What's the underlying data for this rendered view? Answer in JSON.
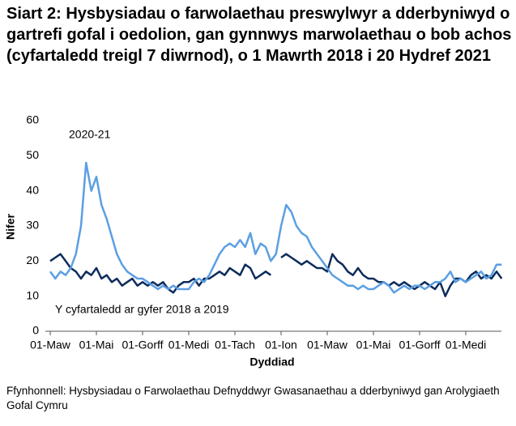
{
  "chart_data": {
    "type": "line",
    "title": "Siart 2: Hysbysiadau o farwolaethau preswylwyr a dderbyniwyd o gartrefi gofal i oedolion, gan gynnwys marwolaethau o bob achos (cyfartaledd treigl 7 diwrnod), o 1 Mawrth 2018 i 20 Hydref 2021",
    "x_label": "Dyddiad",
    "y_label": "Nifer",
    "source": "Ffynhonnell: Hysbysiadau o Farwolaethau Defnyddwyr Gwasanaethau a dderbyniwyd gan Arolygiaeth Gofal Cymru",
    "annotations": [
      "2020-21",
      "Y cyfartaledd ar gyfer 2018 a 2019"
    ],
    "categories": [
      "01-Maw",
      null,
      null,
      null,
      null,
      null,
      null,
      null,
      null,
      "01-Mai",
      null,
      null,
      null,
      null,
      null,
      null,
      null,
      null,
      "01-Gorff",
      null,
      null,
      null,
      null,
      null,
      null,
      null,
      null,
      "01-Medi",
      null,
      null,
      null,
      null,
      null,
      null,
      null,
      null,
      "01-Tach",
      null,
      null,
      null,
      null,
      null,
      null,
      null,
      null,
      "01-Ion",
      null,
      null,
      null,
      null,
      null,
      null,
      null,
      null,
      "01-Maw",
      null,
      null,
      null,
      null,
      null,
      null,
      null,
      null,
      "01-Mai",
      null,
      null,
      null,
      null,
      null,
      null,
      null,
      null,
      "01-Gorff",
      null,
      null,
      null,
      null,
      null,
      null,
      null,
      null,
      "01-Medi",
      null,
      null,
      null,
      null,
      null,
      null,
      null
    ],
    "series": [
      {
        "name": "2020-21",
        "color": "#5b9fe3",
        "values": [
          17,
          15,
          17,
          16,
          18,
          22,
          30,
          48,
          40,
          44,
          36,
          32,
          27,
          22,
          19,
          17,
          16,
          15,
          15,
          14,
          13,
          12,
          13,
          12,
          13,
          12,
          12,
          12,
          14,
          15,
          14,
          16,
          19,
          22,
          24,
          25,
          24,
          26,
          24,
          28,
          22,
          25,
          24,
          20,
          22,
          30,
          36,
          34,
          30,
          28,
          27,
          24,
          22,
          20,
          18,
          16,
          15,
          14,
          13,
          13,
          12,
          13,
          12,
          12,
          13,
          14,
          13,
          11,
          12,
          13,
          12,
          13,
          13,
          12,
          13,
          14,
          14,
          15,
          17,
          14,
          15,
          14,
          15,
          16,
          17,
          15,
          16,
          19,
          19
        ]
      },
      {
        "name": "Y cyfartaledd ar gyfer 2018 a 2019",
        "color": "#0e2c5c",
        "values": [
          20,
          21,
          22,
          20,
          18,
          17,
          15,
          17,
          16,
          18,
          15,
          16,
          14,
          15,
          13,
          14,
          15,
          13,
          14,
          13,
          14,
          13,
          14,
          12,
          11,
          13,
          14,
          14,
          15,
          13,
          15,
          15,
          16,
          17,
          16,
          18,
          17,
          16,
          19,
          18,
          15,
          16,
          17,
          16,
          null,
          21,
          22,
          21,
          20,
          19,
          20,
          19,
          18,
          18,
          17,
          22,
          20,
          19,
          17,
          16,
          18,
          16,
          15,
          15,
          14,
          14,
          13,
          14,
          13,
          14,
          13,
          12,
          13,
          14,
          13,
          12,
          14,
          10,
          13,
          15,
          15,
          14,
          16,
          17,
          15,
          16,
          15,
          17,
          15
        ]
      }
    ],
    "ylim": [
      0,
      60
    ],
    "yticks": [
      0,
      10,
      20,
      30,
      40,
      50,
      60
    ],
    "grid": false
  }
}
